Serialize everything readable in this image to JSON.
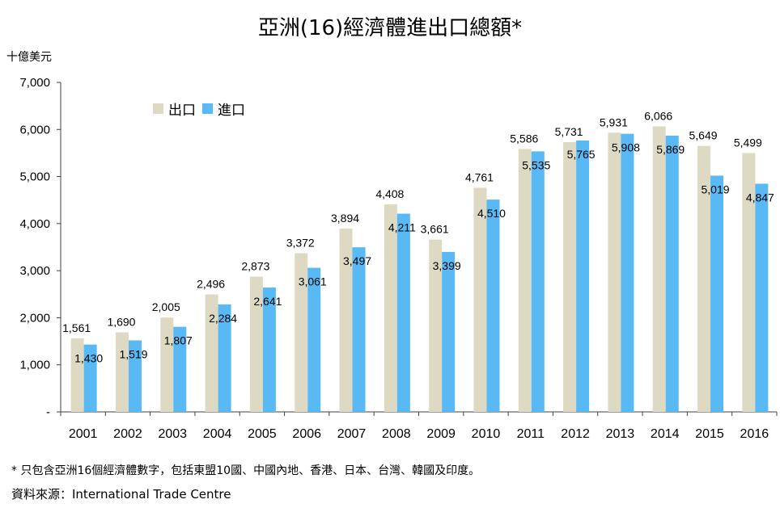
{
  "title": "亞洲(16)經濟體進出口總額*",
  "unit_label": "十億美元",
  "footnote": "* 只包含亞洲16個經濟體數字，包括東盟10國、中國內地、香港、日本、台灣、韓國及印度。",
  "source": "資料來源：International Trade Centre",
  "colors": {
    "exports": "#DDD9C3",
    "imports": "#58B9F5",
    "axis": "#404040",
    "grid": "#BFBFBF"
  },
  "chart_data": {
    "type": "bar",
    "title": "亞洲(16)經濟體進出口總額*",
    "ylabel": "十億美元",
    "xlabel": "",
    "ylim": [
      0,
      7000
    ],
    "yticks": [
      0,
      1000,
      2000,
      3000,
      4000,
      5000,
      6000,
      7000
    ],
    "ytick_labels": [
      "-",
      "1,000",
      "2,000",
      "3,000",
      "4,000",
      "5,000",
      "6,000",
      "7,000"
    ],
    "grid": false,
    "legend_position": "top-left",
    "categories": [
      "2001",
      "2002",
      "2003",
      "2004",
      "2005",
      "2006",
      "2007",
      "2008",
      "2009",
      "2010",
      "2011",
      "2012",
      "2013",
      "2014",
      "2015",
      "2016"
    ],
    "series": [
      {
        "name": "出口",
        "key": "exports",
        "values": [
          1561,
          1690,
          2005,
          2496,
          2873,
          3372,
          3894,
          4408,
          3661,
          4761,
          5586,
          5731,
          5931,
          6066,
          5649,
          5499
        ]
      },
      {
        "name": "進口",
        "key": "imports",
        "values": [
          1430,
          1519,
          1807,
          2284,
          2641,
          3061,
          3497,
          4211,
          3399,
          4510,
          5535,
          5765,
          5908,
          5869,
          5019,
          4847
        ]
      }
    ]
  }
}
